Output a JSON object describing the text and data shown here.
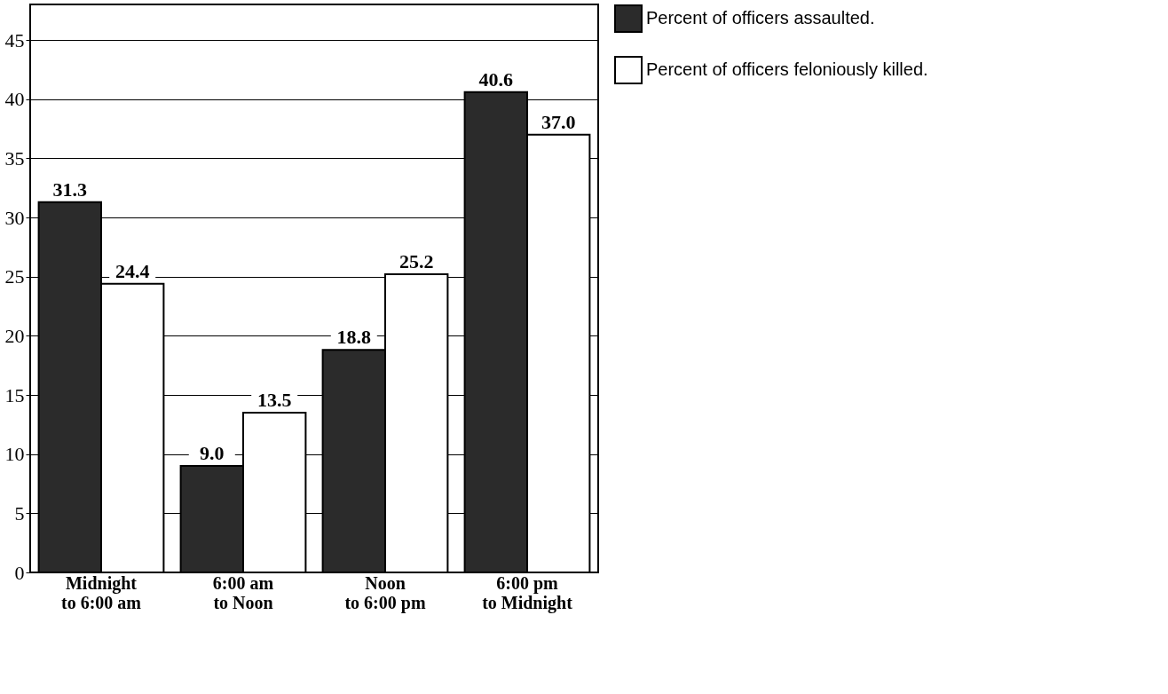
{
  "chart_data": {
    "type": "bar",
    "categories": [
      "Midnight\nto 6:00 am",
      "6:00 am\nto Noon",
      "Noon\nto 6:00 pm",
      "6:00 pm\nto Midnight"
    ],
    "series": [
      {
        "name": "Percent of officers assaulted.",
        "color": "#2b2b2b",
        "values": [
          31.3,
          9.0,
          18.8,
          40.6
        ],
        "value_labels": [
          "31.3",
          "9.0",
          "18.8",
          "40.6"
        ]
      },
      {
        "name": "Percent of officers feloniously killed.",
        "color": "#ffffff",
        "values": [
          24.4,
          13.5,
          25.2,
          37.0
        ],
        "value_labels": [
          "24.4",
          "13.5",
          "25.2",
          "37.0"
        ]
      }
    ],
    "ylim": [
      0,
      48
    ],
    "yticks": [
      0,
      5,
      10,
      15,
      20,
      25,
      30,
      35,
      40,
      45
    ],
    "grid": "y",
    "legend": "right"
  }
}
